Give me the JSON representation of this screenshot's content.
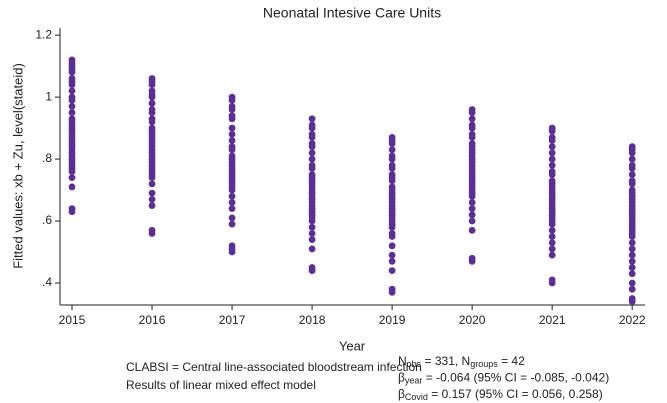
{
  "chart_data": {
    "type": "scatter",
    "title": "Neonatal Intesive Care Units",
    "x_label": "Year",
    "y_label": "Fitted values: xb + Zu, level(stateid)",
    "color": "#5b2f96",
    "xlim": [
      2014.85,
      2022.16
    ],
    "ylim": [
      0.329,
      1.223
    ],
    "xticks": [
      2015,
      2016,
      2017,
      2018,
      2019,
      2020,
      2021,
      2022
    ],
    "yticks": [
      1.2,
      1,
      {
        "value": 0.8,
        "label": ".8"
      },
      {
        "value": 0.6,
        "label": ".6"
      },
      {
        "value": 0.4,
        "label": ".4"
      }
    ],
    "groups": [
      {
        "x": 2015,
        "values": [
          1.12,
          1.11,
          1.1,
          1.09,
          1.08,
          1.06,
          1.05,
          1.04,
          1.02,
          1.0,
          0.99,
          0.97,
          0.95,
          0.93,
          0.92,
          0.91,
          0.9,
          0.89,
          0.88,
          0.87,
          0.86,
          0.85,
          0.84,
          0.83,
          0.82,
          0.81,
          0.8,
          0.79,
          0.78,
          0.77,
          0.76,
          0.74,
          0.71,
          0.64,
          0.63
        ]
      },
      {
        "x": 2016,
        "values": [
          1.06,
          1.05,
          1.04,
          1.02,
          1.01,
          1.0,
          0.98,
          0.96,
          0.95,
          0.93,
          0.92,
          0.9,
          0.89,
          0.88,
          0.87,
          0.86,
          0.85,
          0.84,
          0.83,
          0.82,
          0.81,
          0.8,
          0.79,
          0.78,
          0.77,
          0.76,
          0.75,
          0.74,
          0.72,
          0.69,
          0.67,
          0.65,
          0.57,
          0.56
        ]
      },
      {
        "x": 2017,
        "values": [
          1.0,
          0.99,
          0.97,
          0.96,
          0.94,
          0.93,
          0.9,
          0.88,
          0.86,
          0.84,
          0.83,
          0.81,
          0.8,
          0.79,
          0.78,
          0.77,
          0.76,
          0.75,
          0.74,
          0.73,
          0.72,
          0.71,
          0.7,
          0.68,
          0.66,
          0.64,
          0.61,
          0.59,
          0.52,
          0.51,
          0.5
        ]
      },
      {
        "x": 2018,
        "values": [
          0.93,
          0.91,
          0.9,
          0.88,
          0.87,
          0.85,
          0.84,
          0.82,
          0.8,
          0.78,
          0.77,
          0.75,
          0.74,
          0.73,
          0.72,
          0.71,
          0.7,
          0.69,
          0.68,
          0.67,
          0.66,
          0.65,
          0.64,
          0.63,
          0.62,
          0.61,
          0.6,
          0.58,
          0.56,
          0.54,
          0.51,
          0.45,
          0.44
        ]
      },
      {
        "x": 2019,
        "values": [
          0.87,
          0.86,
          0.85,
          0.83,
          0.81,
          0.8,
          0.78,
          0.77,
          0.75,
          0.74,
          0.73,
          0.71,
          0.7,
          0.69,
          0.68,
          0.67,
          0.66,
          0.65,
          0.64,
          0.63,
          0.62,
          0.61,
          0.6,
          0.59,
          0.58,
          0.56,
          0.55,
          0.52,
          0.49,
          0.47,
          0.44,
          0.38,
          0.37
        ]
      },
      {
        "x": 2020,
        "values": [
          0.96,
          0.95,
          0.93,
          0.91,
          0.9,
          0.88,
          0.87,
          0.85,
          0.84,
          0.83,
          0.82,
          0.81,
          0.8,
          0.79,
          0.78,
          0.77,
          0.76,
          0.75,
          0.74,
          0.73,
          0.72,
          0.71,
          0.7,
          0.69,
          0.68,
          0.66,
          0.64,
          0.62,
          0.6,
          0.57,
          0.48,
          0.47
        ]
      },
      {
        "x": 2021,
        "values": [
          0.9,
          0.89,
          0.87,
          0.86,
          0.84,
          0.82,
          0.8,
          0.78,
          0.76,
          0.75,
          0.73,
          0.72,
          0.71,
          0.7,
          0.69,
          0.68,
          0.67,
          0.66,
          0.65,
          0.64,
          0.63,
          0.62,
          0.61,
          0.6,
          0.59,
          0.57,
          0.55,
          0.53,
          0.51,
          0.49,
          0.41,
          0.4
        ]
      },
      {
        "x": 2022,
        "values": [
          0.84,
          0.83,
          0.82,
          0.8,
          0.78,
          0.77,
          0.75,
          0.73,
          0.72,
          0.7,
          0.69,
          0.68,
          0.67,
          0.66,
          0.65,
          0.64,
          0.63,
          0.62,
          0.61,
          0.6,
          0.59,
          0.58,
          0.57,
          0.56,
          0.55,
          0.53,
          0.51,
          0.49,
          0.47,
          0.45,
          0.43,
          0.4,
          0.38,
          0.35,
          0.34
        ]
      }
    ],
    "notes": [
      "CLABSI = Central line-associated bloodstream infection",
      "Results of linear mixed effect model"
    ],
    "stats": [
      [
        {
          "text": "N"
        },
        {
          "sub": "obs"
        },
        {
          "text": " = 331, N"
        },
        {
          "sub": "groups"
        },
        {
          "text": " = 42"
        }
      ],
      [
        {
          "text": "β"
        },
        {
          "sub": "year"
        },
        {
          "text": " = -0.064 (95% CI = -0.085, -0.042)"
        }
      ],
      [
        {
          "text": "β"
        },
        {
          "sub": "Covid"
        },
        {
          "text": " = 0.157 (95% CI = 0.056, 0.258)"
        }
      ]
    ]
  }
}
